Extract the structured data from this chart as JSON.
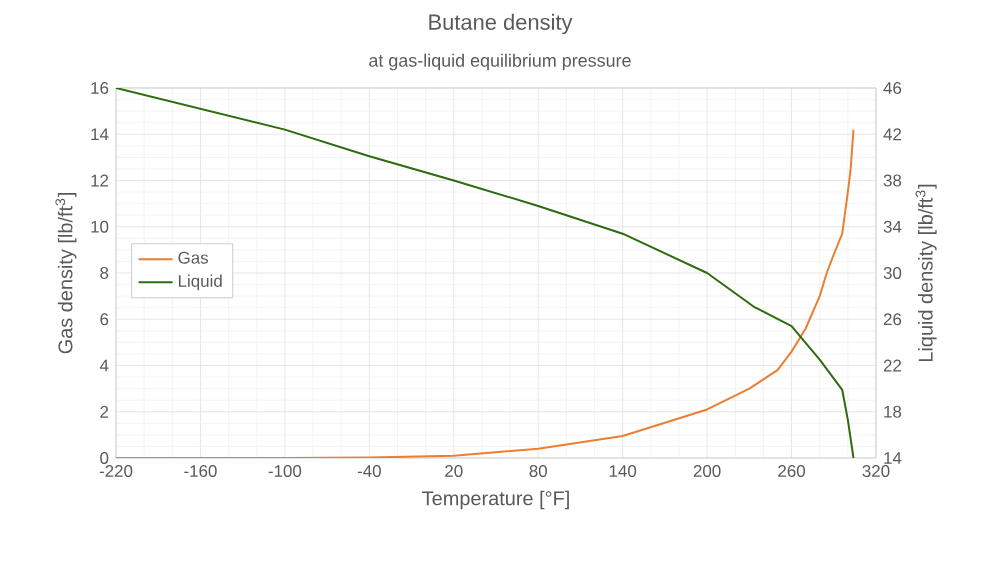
{
  "chart_data": {
    "type": "line",
    "title": "Butane density",
    "subtitle": "at gas-liquid equilibrium pressure",
    "xlabel": "Temperature [°F]",
    "ylabel": "Gas density [lb/ft$^{3}$]",
    "y2label": "Liquid density [lb/ft$^{3}$]",
    "xlim": [
      -220,
      320
    ],
    "xticks": [
      -220,
      -160,
      -100,
      -40,
      20,
      80,
      140,
      200,
      260,
      320
    ],
    "ylim": [
      0,
      16
    ],
    "yticks": [
      0,
      2,
      4,
      6,
      8,
      10,
      12,
      14,
      16
    ],
    "y2lim": [
      14,
      46
    ],
    "y2ticks": [
      14,
      18,
      22,
      26,
      30,
      34,
      38,
      42,
      46
    ],
    "grid": true,
    "legend": "left",
    "series": [
      {
        "name": "Gas",
        "color": "#ed7d31",
        "x": [
          -220,
          -160,
          -100,
          -40,
          20,
          80,
          140,
          200,
          230,
          250,
          260,
          270,
          280,
          285,
          290,
          296,
          300,
          302,
          304
        ],
        "values": [
          0,
          0,
          0,
          0.02,
          0.1,
          0.4,
          0.95,
          2.1,
          3.0,
          3.8,
          4.6,
          5.6,
          7.0,
          8.0,
          8.8,
          9.7,
          11.5,
          12.5,
          14.2
        ]
      },
      {
        "name": "Liquid",
        "color": "#2e6b0e",
        "axis": "y2",
        "x": [
          -220,
          -160,
          -100,
          -40,
          20,
          80,
          140,
          200,
          233,
          260,
          280,
          296,
          300,
          304
        ],
        "values": [
          46,
          44.2,
          42.4,
          40.1,
          38.0,
          35.8,
          33.4,
          30.0,
          27.1,
          25.4,
          22.5,
          19.9,
          17.3,
          14
        ]
      }
    ]
  }
}
